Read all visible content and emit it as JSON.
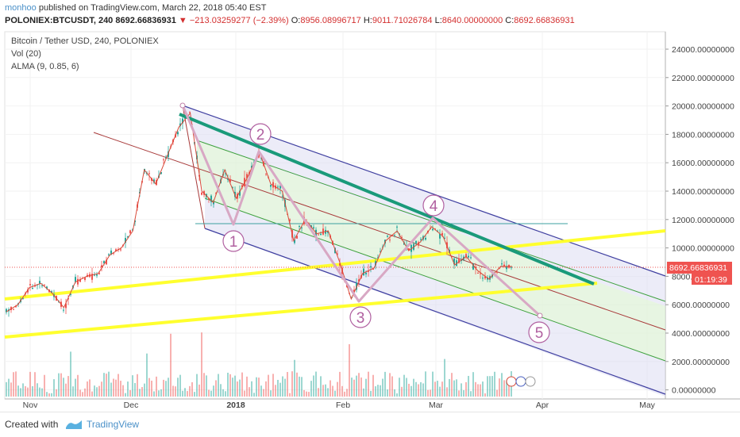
{
  "header": {
    "publisher": "monhoo",
    "published_text": "published on TradingView.com, March 22, 2018 05:40 EST",
    "symbol": "POLONIEX:BTCUSDT, 240",
    "last": "8692.66836931",
    "change": "−213.03259277 (−2.39%)",
    "o_label": "O:",
    "o_value": "8956.08996717",
    "h_label": "H:",
    "h_value": "9011.71026784",
    "l_label": "L:",
    "l_value": "8640.00000000",
    "c_label": "C:",
    "c_value": "8692.66836931"
  },
  "legend": {
    "title": "Bitcoin / Tether USD, 240, POLONIEX",
    "vol": "Vol (20)",
    "alma": "ALMA (9, 0.85, 6)"
  },
  "price_tag": "8692.66836931",
  "timer_tag": "01:19:39",
  "waves": [
    "1",
    "2",
    "3",
    "4",
    "5"
  ],
  "footer": {
    "created_with": "Created with",
    "brand": "TradingView"
  },
  "colors": {
    "bull": "#26a69a",
    "bear": "#ef5350",
    "channel": "#3f3fa0",
    "trendline": "#1a9a7a",
    "support": "#ffff2e",
    "wave": "#c080a8",
    "price_tag": "#ef5350"
  },
  "chart_data": {
    "type": "candlestick",
    "symbol": "BTCUSDT",
    "y_axis_ticks": [
      "24000.00000000",
      "22000.00000000",
      "20000.00000000",
      "18000.00000000",
      "16000.00000000",
      "14000.00000000",
      "12000.00000000",
      "10000.00000000",
      "8000.00000000",
      "6000.00000000",
      "4000.00000000",
      "2000.00000000",
      "0.00000000"
    ],
    "x_axis_ticks": [
      "Nov",
      "Dec",
      "2018",
      "Feb",
      "Mar",
      "Apr",
      "May"
    ],
    "ylim": [
      -400,
      25000
    ],
    "price_path": [
      {
        "date": "Oct 26",
        "close": 5500
      },
      {
        "date": "Oct 30",
        "close": 6000
      },
      {
        "date": "Nov 3",
        "close": 7200
      },
      {
        "date": "Nov 6",
        "close": 7500
      },
      {
        "date": "Nov 10",
        "close": 6800
      },
      {
        "date": "Nov 12",
        "close": 5800
      },
      {
        "date": "Nov 16",
        "close": 7600
      },
      {
        "date": "Nov 20",
        "close": 8000
      },
      {
        "date": "Nov 24",
        "close": 8200
      },
      {
        "date": "Nov 27",
        "close": 9500
      },
      {
        "date": "Nov 30",
        "close": 10000
      },
      {
        "date": "Dec 4",
        "close": 11200
      },
      {
        "date": "Dec 7",
        "close": 15500
      },
      {
        "date": "Dec 9",
        "close": 14500
      },
      {
        "date": "Dec 12",
        "close": 16500
      },
      {
        "date": "Dec 16",
        "close": 18500
      },
      {
        "date": "Dec 17",
        "close": 19500
      },
      {
        "date": "Dec 22",
        "close": 14000
      },
      {
        "date": "Dec 24",
        "close": 13200
      },
      {
        "date": "Dec 27",
        "close": 15500
      },
      {
        "date": "Dec 31",
        "close": 13500
      },
      {
        "date": "Jan 3",
        "close": 15000
      },
      {
        "date": "Jan 7",
        "close": 16800
      },
      {
        "date": "Jan 10",
        "close": 14500
      },
      {
        "date": "Jan 13",
        "close": 14000
      },
      {
        "date": "Jan 17",
        "close": 10500
      },
      {
        "date": "Jan 20",
        "close": 12000
      },
      {
        "date": "Jan 25",
        "close": 11000
      },
      {
        "date": "Jan 29",
        "close": 11200
      },
      {
        "date": "Feb 2",
        "close": 9000
      },
      {
        "date": "Feb 6",
        "close": 6400
      },
      {
        "date": "Feb 9",
        "close": 8200
      },
      {
        "date": "Feb 13",
        "close": 8600
      },
      {
        "date": "Feb 17",
        "close": 10500
      },
      {
        "date": "Feb 20",
        "close": 11200
      },
      {
        "date": "Feb 24",
        "close": 9800
      },
      {
        "date": "Feb 28",
        "close": 10400
      },
      {
        "date": "Mar 4",
        "close": 11500
      },
      {
        "date": "Mar 7",
        "close": 10800
      },
      {
        "date": "Mar 9",
        "close": 8800
      },
      {
        "date": "Mar 12",
        "close": 9400
      },
      {
        "date": "Mar 15",
        "close": 8400
      },
      {
        "date": "Mar 18",
        "close": 7800
      },
      {
        "date": "Mar 20",
        "close": 8700
      },
      {
        "date": "Mar 22",
        "close": 8700
      }
    ]
  }
}
